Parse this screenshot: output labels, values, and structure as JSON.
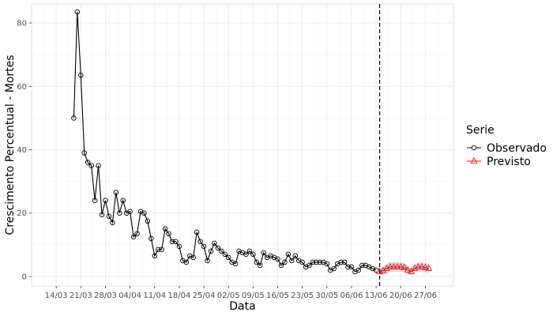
{
  "chart_data": {
    "type": "line",
    "title": "",
    "xlabel": "Data",
    "ylabel": "Crescimento Percentual - Mortes",
    "ylim": [
      -3,
      86
    ],
    "yticks": [
      0,
      20,
      40,
      60,
      80
    ],
    "xlim": [
      "2020-03-07",
      "2020-07-05"
    ],
    "xticks": [
      "2020-03-14",
      "2020-03-21",
      "2020-03-28",
      "2020-04-04",
      "2020-04-11",
      "2020-04-18",
      "2020-04-25",
      "2020-05-02",
      "2020-05-09",
      "2020-05-16",
      "2020-05-23",
      "2020-05-30",
      "2020-06-06",
      "2020-06-13",
      "2020-06-20",
      "2020-06-27"
    ],
    "xtick_labels": [
      "14/03",
      "21/03",
      "28/03",
      "04/04",
      "11/04",
      "18/04",
      "25/04",
      "02/05",
      "09/05",
      "16/05",
      "23/05",
      "30/05",
      "06/06",
      "13/06",
      "20/06",
      "27/06"
    ],
    "grid": true,
    "vline": "2020-06-14",
    "legend": {
      "title": "Serie",
      "position": "right"
    },
    "series": [
      {
        "name": "Observado",
        "color": "#000000",
        "marker": "circle",
        "x": [
          "2020-03-19",
          "2020-03-20",
          "2020-03-21",
          "2020-03-22",
          "2020-03-23",
          "2020-03-24",
          "2020-03-25",
          "2020-03-26",
          "2020-03-27",
          "2020-03-28",
          "2020-03-29",
          "2020-03-30",
          "2020-03-31",
          "2020-04-01",
          "2020-04-02",
          "2020-04-03",
          "2020-04-04",
          "2020-04-05",
          "2020-04-06",
          "2020-04-07",
          "2020-04-08",
          "2020-04-09",
          "2020-04-10",
          "2020-04-11",
          "2020-04-12",
          "2020-04-13",
          "2020-04-14",
          "2020-04-15",
          "2020-04-16",
          "2020-04-17",
          "2020-04-18",
          "2020-04-19",
          "2020-04-20",
          "2020-04-21",
          "2020-04-22",
          "2020-04-23",
          "2020-04-24",
          "2020-04-25",
          "2020-04-26",
          "2020-04-27",
          "2020-04-28",
          "2020-04-29",
          "2020-04-30",
          "2020-05-01",
          "2020-05-02",
          "2020-05-03",
          "2020-05-04",
          "2020-05-05",
          "2020-05-06",
          "2020-05-07",
          "2020-05-08",
          "2020-05-09",
          "2020-05-10",
          "2020-05-11",
          "2020-05-12",
          "2020-05-13",
          "2020-05-14",
          "2020-05-15",
          "2020-05-16",
          "2020-05-17",
          "2020-05-18",
          "2020-05-19",
          "2020-05-20",
          "2020-05-21",
          "2020-05-22",
          "2020-05-23",
          "2020-05-24",
          "2020-05-25",
          "2020-05-26",
          "2020-05-27",
          "2020-05-28",
          "2020-05-29",
          "2020-05-30",
          "2020-05-31",
          "2020-06-01",
          "2020-06-02",
          "2020-06-03",
          "2020-06-04",
          "2020-06-05",
          "2020-06-06",
          "2020-06-07",
          "2020-06-08",
          "2020-06-09",
          "2020-06-10",
          "2020-06-11",
          "2020-06-12",
          "2020-06-13"
        ],
        "values": [
          50,
          83.5,
          63.5,
          39,
          36,
          35,
          24,
          35,
          19.5,
          24,
          19,
          17,
          26.5,
          20,
          24,
          20,
          20.5,
          12.5,
          13.5,
          20.5,
          20,
          17.5,
          12,
          6.5,
          8.5,
          8.5,
          15,
          13.5,
          11,
          11,
          9.5,
          5,
          4.5,
          6.5,
          6,
          14,
          11,
          9.5,
          5,
          8,
          10.5,
          9,
          8,
          7,
          6,
          4.5,
          4,
          8,
          7.5,
          7,
          8,
          7,
          4.5,
          3.5,
          7.5,
          6,
          6.5,
          6,
          5.5,
          3.5,
          4.5,
          7,
          5,
          6.5,
          5,
          4.5,
          3,
          3.5,
          4.5,
          4.5,
          4.5,
          4.5,
          4,
          2,
          2.5,
          4,
          4.5,
          4.5,
          3,
          3,
          1.5,
          2,
          3.5,
          3.5,
          3,
          2.5,
          2
        ]
      },
      {
        "name": "Previsto",
        "color": "#e41a1c",
        "marker": "triangle",
        "x": [
          "2020-06-14",
          "2020-06-15",
          "2020-06-16",
          "2020-06-17",
          "2020-06-18",
          "2020-06-19",
          "2020-06-20",
          "2020-06-21",
          "2020-06-22",
          "2020-06-23",
          "2020-06-24",
          "2020-06-25",
          "2020-06-26",
          "2020-06-27",
          "2020-06-28"
        ],
        "values": [
          1.5,
          1.8,
          2.5,
          3,
          3,
          3,
          3,
          2.8,
          2,
          1.5,
          2.5,
          3,
          3,
          2.8,
          2.5
        ],
        "lower": [
          0.5,
          0.6,
          1.0,
          1.5,
          1.5,
          1.5,
          1.5,
          1.3,
          0.8,
          0.5,
          1.0,
          1.5,
          1.5,
          1.3,
          1.0
        ],
        "upper": [
          2.5,
          3.0,
          4.0,
          4.5,
          4.5,
          4.5,
          4.5,
          4.3,
          3.5,
          2.8,
          4.0,
          4.5,
          4.5,
          4.3,
          4.0
        ]
      }
    ]
  }
}
